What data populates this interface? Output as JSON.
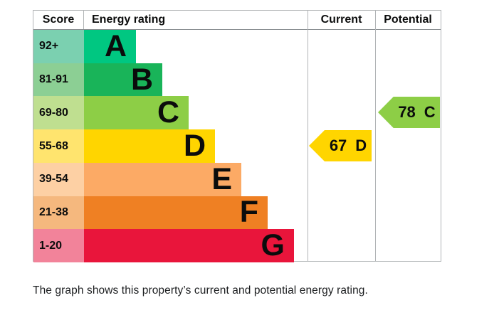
{
  "headers": {
    "score": "Score",
    "energy_rating": "Energy rating",
    "current": "Current",
    "potential": "Potential"
  },
  "caption": "The graph shows this property’s current and potential energy rating.",
  "chart_data": {
    "type": "bar",
    "title": "Energy rating",
    "description": "EPC energy efficiency rating chart with score bands A to G",
    "legend_position": "none",
    "bands": [
      {
        "band": "A",
        "score_range": "92+",
        "color": "#00c781",
        "tint": "#7bd0b0"
      },
      {
        "band": "B",
        "score_range": "81-91",
        "color": "#19b459",
        "tint": "#8ccf94"
      },
      {
        "band": "C",
        "score_range": "69-80",
        "color": "#8dce46",
        "tint": "#bfdf90"
      },
      {
        "band": "D",
        "score_range": "55-68",
        "color": "#ffd500",
        "tint": "#ffe46e"
      },
      {
        "band": "E",
        "score_range": "39-54",
        "color": "#fcaa65",
        "tint": "#fdd0a4"
      },
      {
        "band": "F",
        "score_range": "21-38",
        "color": "#ef8023",
        "tint": "#f5b87e"
      },
      {
        "band": "G",
        "score_range": "1-20",
        "color": "#e9153b",
        "tint": "#f2839a"
      }
    ],
    "current": {
      "score": "67",
      "band": "D",
      "color": "#ffd500"
    },
    "potential": {
      "score": "78",
      "band": "C",
      "color": "#8dce46"
    }
  }
}
